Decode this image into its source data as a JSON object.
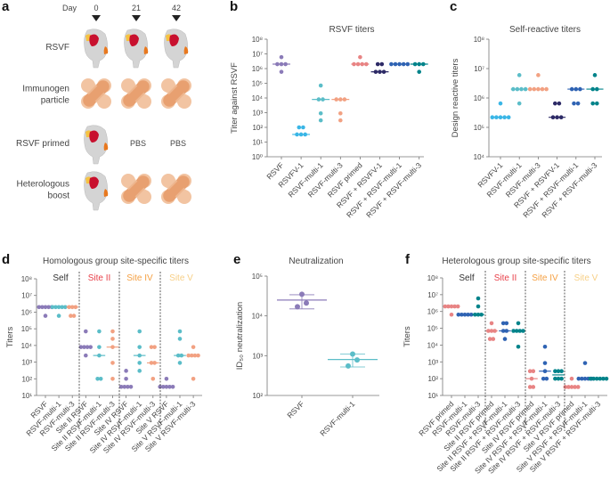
{
  "panels": {
    "a": "a",
    "b": "b",
    "c": "c",
    "d": "d",
    "e": "e",
    "f": "f"
  },
  "schedule": {
    "day_label": "Day",
    "days": [
      "0",
      "21",
      "42"
    ],
    "rows": [
      {
        "label_lines": [
          "RSVF"
        ],
        "doses": [
          "protein",
          "protein",
          "protein"
        ]
      },
      {
        "label_lines": [
          "Immunogen",
          "particle"
        ],
        "doses": [
          "particle",
          "particle",
          "particle"
        ]
      },
      {
        "label_lines": [
          "RSVF primed"
        ],
        "doses": [
          "protein",
          "PBS",
          "PBS"
        ]
      },
      {
        "label_lines": [
          "Heterologous",
          "boost"
        ],
        "doses": [
          "protein",
          "particle",
          "particle"
        ]
      }
    ],
    "pbs_label": "PBS",
    "colors": {
      "protein": "#d4d4d4",
      "site_red": "#c8102e",
      "site_yellow": "#f5c342",
      "site_orange": "#e8781e",
      "particle_dark": "#e8a070",
      "particle_light": "#f2c4a2"
    }
  },
  "chart_data": [
    {
      "panel": "b",
      "type": "scatter",
      "title": "RSVF titers",
      "ylabel": "Titer against RSVF",
      "yscale": "log",
      "ylim": [
        1,
        100000000
      ],
      "yticks": [
        "10⁰",
        "10¹",
        "10²",
        "10³",
        "10⁴",
        "10⁵",
        "10⁶",
        "10⁷",
        "10⁸"
      ],
      "categories": [
        "RSVF",
        "RSVFV-1",
        "RSVF-multi-1",
        "RSVF-multi-3",
        "RSVF primed",
        "RSVF + RSVFV-1",
        "RSVF + RSVF-multi-1",
        "RSVF + RSVF-multi-3"
      ],
      "colors": [
        "#8b7bb8",
        "#3ab6e6",
        "#5bbdc8",
        "#f2a182",
        "#e88484",
        "#2d2a66",
        "#2f63b3",
        "#00838a"
      ],
      "values": [
        [
          6000000,
          2000000,
          2000000,
          2000000,
          600000
        ],
        [
          100,
          100,
          33,
          33,
          33
        ],
        [
          70000,
          8000,
          8000,
          900,
          300
        ],
        [
          8000,
          8000,
          8000,
          900,
          300
        ],
        [
          6000000,
          2000000,
          2000000,
          2000000,
          2000000
        ],
        [
          2000000,
          2000000,
          600000,
          600000,
          600000
        ],
        [
          2000000,
          2000000,
          2000000,
          2000000,
          2000000
        ],
        [
          2000000,
          2000000,
          2000000,
          600000
        ]
      ]
    },
    {
      "panel": "c",
      "type": "scatter",
      "title": "Self-reactive titers",
      "ylabel": "Design reactive titers",
      "yscale": "log",
      "ylim": [
        10000,
        100000000
      ],
      "yticks": [
        "10⁴",
        "10⁵",
        "10⁶",
        "10⁷",
        "10⁸"
      ],
      "categories": [
        "RSVFV-1",
        "RSVF-multi-1",
        "RSVF-multi-3",
        "RSVF + RSVFV-1",
        "RSVF + RSVF-multi-1",
        "RSVF + RSVF-multi-3"
      ],
      "colors": [
        "#3ab6e6",
        "#5bbdc8",
        "#f2a182",
        "#2d2a66",
        "#2f63b3",
        "#00838a"
      ],
      "values": [
        [
          650000,
          220000,
          220000,
          220000,
          220000,
          220000
        ],
        [
          6000000,
          2000000,
          2000000,
          2000000,
          2000000,
          650000
        ],
        [
          6000000,
          2000000,
          2000000,
          2000000,
          2000000,
          2000000
        ],
        [
          650000,
          650000,
          220000,
          220000,
          220000
        ],
        [
          2000000,
          2000000,
          2000000,
          650000,
          650000
        ],
        [
          6000000,
          2000000,
          2000000,
          650000,
          650000
        ]
      ]
    },
    {
      "panel": "d",
      "type": "scatter",
      "title": "Homologous group site-specific titers",
      "ylabel": "Titers",
      "yscale": "log",
      "ylim": [
        10,
        100000000
      ],
      "yticks": [
        "10¹",
        "10²",
        "10³",
        "10⁴",
        "10⁵",
        "10⁶",
        "10⁷",
        "10⁸"
      ],
      "groups": [
        {
          "label": "Self",
          "color": "#333333"
        },
        {
          "label": "Site II",
          "color": "#e8404a"
        },
        {
          "label": "Site IV",
          "color": "#f5a043"
        },
        {
          "label": "Site V",
          "color": "#f7cf86"
        }
      ],
      "categories": [
        "RSVF",
        "RSVF-multi-1",
        "RSVF-multi-3",
        "Site II RSVF",
        "Site II RSVF-multi-1",
        "Site II RSVF-multi-3",
        "Site IV RSVF",
        "Site IV RSVF-multi-1",
        "Site IV RSVF-multi-3",
        "Site V RSVF",
        "Site V RSVF-multi-1",
        "Site V RSVF-multi-3"
      ],
      "colors": [
        "#8b7bb8",
        "#5bbdc8",
        "#f2a182",
        "#8b7bb8",
        "#5bbdc8",
        "#f2a182",
        "#8b7bb8",
        "#5bbdc8",
        "#f2a182",
        "#8b7bb8",
        "#5bbdc8",
        "#f2a182"
      ],
      "values": [
        [
          2000000,
          2000000,
          2000000,
          2000000,
          2000000,
          600000
        ],
        [
          2000000,
          2000000,
          2000000,
          2000000,
          2000000,
          600000
        ],
        [
          2000000,
          2000000,
          2000000,
          600000,
          600000
        ],
        [
          70000,
          8000,
          8000,
          8000,
          8000,
          2500
        ],
        [
          70000,
          8000,
          2500,
          100,
          100
        ],
        [
          70000,
          25000,
          8000,
          900,
          100
        ],
        [
          300,
          100,
          33,
          33,
          33,
          33
        ],
        [
          70000,
          8000,
          2500,
          900,
          300
        ],
        [
          8000,
          8000,
          900,
          900,
          100
        ],
        [
          100,
          33,
          33,
          33,
          33,
          33
        ],
        [
          70000,
          25000,
          2500,
          2500,
          900
        ],
        [
          8000,
          2500,
          2500,
          2500,
          2500,
          100
        ]
      ]
    },
    {
      "panel": "e",
      "type": "scatter",
      "title": "Neutralization",
      "ylabel": "ID₅₀ neutralization",
      "yscale": "log",
      "ylim": [
        100,
        100000
      ],
      "yticks": [
        "10²",
        "10³",
        "10⁴",
        "10⁵"
      ],
      "categories": [
        "RSVF",
        "RSVF-multi-1"
      ],
      "colors": [
        "#8b7bb8",
        "#5bbdc8"
      ],
      "values": [
        [
          35000,
          21000,
          17000
        ],
        [
          1100,
          780,
          550
        ]
      ],
      "summary": [
        {
          "mean": 25000,
          "low": 15000,
          "high": 34000
        },
        {
          "mean": 800,
          "low": 520,
          "high": 1100
        }
      ]
    },
    {
      "panel": "f",
      "type": "scatter",
      "title": "Heterologous group site-specific titers",
      "ylabel": "Titers",
      "yscale": "log",
      "ylim": [
        10,
        100000000
      ],
      "yticks": [
        "10¹",
        "10²",
        "10³",
        "10⁴",
        "10⁵",
        "10⁶",
        "10⁷",
        "10⁸"
      ],
      "groups": [
        {
          "label": "Self",
          "color": "#333333"
        },
        {
          "label": "Site II",
          "color": "#e8404a"
        },
        {
          "label": "Site IV",
          "color": "#f5a043"
        },
        {
          "label": "Site V",
          "color": "#f7cf86"
        }
      ],
      "categories": [
        "RSVF primed",
        "RSVF-multi-1",
        "RSVF-multi-3",
        "Site II RSVF primed",
        "Site II RSVF + RSVF-multi-1",
        "Site II RSVF + RSVF-multi-3",
        "Site IV RSVF primed",
        "Site IV RSVF + RSVF-multi-1",
        "Site IV RSVF + RSVF-multi-3",
        "Site V RSVF primed",
        "Site V RSVF + RSVF-multi-1",
        "Site V RSVF + RSVF-multi-3"
      ],
      "colors": [
        "#e88484",
        "#2f63b3",
        "#00838a",
        "#e88484",
        "#2f63b3",
        "#00838a",
        "#e88484",
        "#2f63b3",
        "#00838a",
        "#e88484",
        "#2f63b3",
        "#00838a"
      ],
      "values": [
        [
          2000000,
          2000000,
          2000000,
          2000000,
          2000000,
          650000
        ],
        [
          650000,
          650000,
          650000,
          650000,
          650000
        ],
        [
          6000000,
          2000000,
          650000,
          650000,
          650000
        ],
        [
          200000,
          70000,
          70000,
          70000,
          23000,
          23000
        ],
        [
          200000,
          200000,
          70000,
          70000,
          23000
        ],
        [
          200000,
          70000,
          70000,
          70000,
          70000,
          8000
        ],
        [
          280,
          280,
          100,
          32,
          32
        ],
        [
          8000,
          850,
          280,
          100,
          100
        ],
        [
          280,
          280,
          280,
          100,
          100,
          100
        ],
        [
          100,
          32,
          32,
          32,
          32,
          32
        ],
        [
          850,
          100,
          100,
          100,
          100,
          100
        ],
        [
          100,
          100,
          100,
          100,
          100,
          100
        ]
      ]
    }
  ]
}
